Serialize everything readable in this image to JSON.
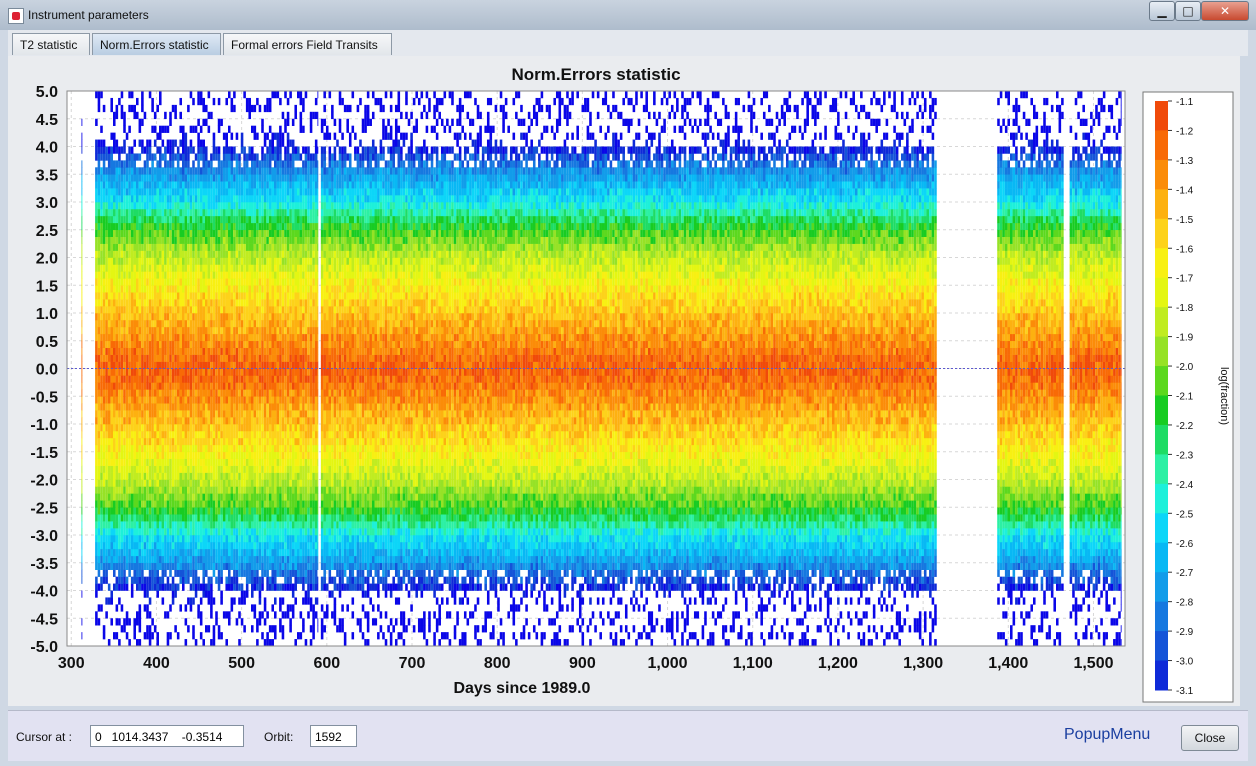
{
  "window": {
    "title": "Instrument parameters",
    "buttons": {
      "minimize": "▁",
      "maximize": "□",
      "close": "✕"
    }
  },
  "tabs": [
    {
      "label": "T2 statistic",
      "active": false
    },
    {
      "label": "Norm.Errors statistic",
      "active": true
    },
    {
      "label": "Formal errors Field Transits",
      "active": false
    }
  ],
  "chart_data": {
    "type": "heatmap",
    "title": "Norm.Errors statistic",
    "xlabel": "Days since 1989.0",
    "ylabel": "",
    "xlim": [
      295,
      1537
    ],
    "ylim": [
      -5.0,
      5.0
    ],
    "x_ticks": [
      300,
      400,
      500,
      600,
      700,
      800,
      900,
      1000,
      1100,
      1200,
      1300,
      1400,
      1500
    ],
    "x_tick_labels": [
      "300",
      "400",
      "500",
      "600",
      "700",
      "800",
      "900",
      "1,000",
      "1,100",
      "1,200",
      "1,300",
      "1,400",
      "1,500"
    ],
    "y_ticks": [
      5.0,
      4.5,
      4.0,
      3.5,
      3.0,
      2.5,
      2.0,
      1.5,
      1.0,
      0.5,
      0.0,
      -0.5,
      -1.0,
      -1.5,
      -2.0,
      -2.5,
      -3.0,
      -3.5,
      -4.0,
      -4.5,
      -5.0
    ],
    "y_tick_labels": [
      "5.0",
      "4.5",
      "4.0",
      "3.5",
      "3.0",
      "2.5",
      "2.0",
      "1.5",
      "1.0",
      "0.5",
      "0.0",
      "-0.5",
      "-1.0",
      "-1.5",
      "-2.0",
      "-2.5",
      "-3.0",
      "-3.5",
      "-4.0",
      "-4.5",
      "-5.0"
    ],
    "data_segments": [
      [
        312,
        313
      ],
      [
        328,
        590
      ],
      [
        593,
        1316
      ],
      [
        1387,
        1465
      ],
      [
        1472,
        1533
      ]
    ],
    "data_gaps": [
      [
        591,
        592
      ],
      [
        1317,
        1386
      ],
      [
        1466,
        1471
      ]
    ],
    "reference_line_y": 0.0,
    "grid": true,
    "colorbar": {
      "label": "log(fraction)",
      "levels": [
        -1.1,
        -1.2,
        -1.3,
        -1.4,
        -1.5,
        -1.6,
        -1.7,
        -1.8,
        -1.9,
        -2.0,
        -2.1,
        -2.2,
        -2.3,
        -2.4,
        -2.5,
        -2.6,
        -2.7,
        -2.8,
        -2.9,
        -3.0,
        -3.1
      ],
      "level_labels": [
        "-1.1",
        "-1.2",
        "-1.3",
        "-1.4",
        "-1.5",
        "-1.6",
        "-1.7",
        "-1.8",
        "-1.9",
        "-2.0",
        "-2.1",
        "-2.2",
        "-2.3",
        "-2.4",
        "-2.5",
        "-2.6",
        "-2.7",
        "-2.8",
        "-2.9",
        "-3.0",
        "-3.1"
      ],
      "colors": [
        "#f04a0a",
        "#f86a06",
        "#fb8c08",
        "#fdb110",
        "#fdd21a",
        "#f8f012",
        "#e4f612",
        "#c0ec20",
        "#96e226",
        "#5cd81e",
        "#18cc22",
        "#1edc64",
        "#2cf0a4",
        "#1df0da",
        "#0cd6f8",
        "#08b8f4",
        "#129cea",
        "#1678e0",
        "#1454d8",
        "#0e2ad8",
        "#0a06e8"
      ]
    },
    "profile": [
      {
        "y": 0.0,
        "level": -1.15
      },
      {
        "y": 0.5,
        "level": -1.3
      },
      {
        "y": 1.0,
        "level": -1.45
      },
      {
        "y": 1.5,
        "level": -1.6
      },
      {
        "y": 2.0,
        "level": -1.8
      },
      {
        "y": 2.5,
        "level": -2.05
      },
      {
        "y": 3.0,
        "level": -2.45
      },
      {
        "y": 3.5,
        "level": -2.7
      },
      {
        "y": 4.0,
        "level": -3.05
      },
      {
        "y": 4.5,
        "level": -3.25
      },
      {
        "y": 5.0,
        "level": -3.4
      }
    ]
  },
  "bottom": {
    "cursor_label": "Cursor at :",
    "cursor_value": "0   1014.3437    -0.3514",
    "orbit_label": "Orbit:",
    "orbit_value": "1592",
    "popup_label": "PopupMenu",
    "close_label": "Close"
  }
}
